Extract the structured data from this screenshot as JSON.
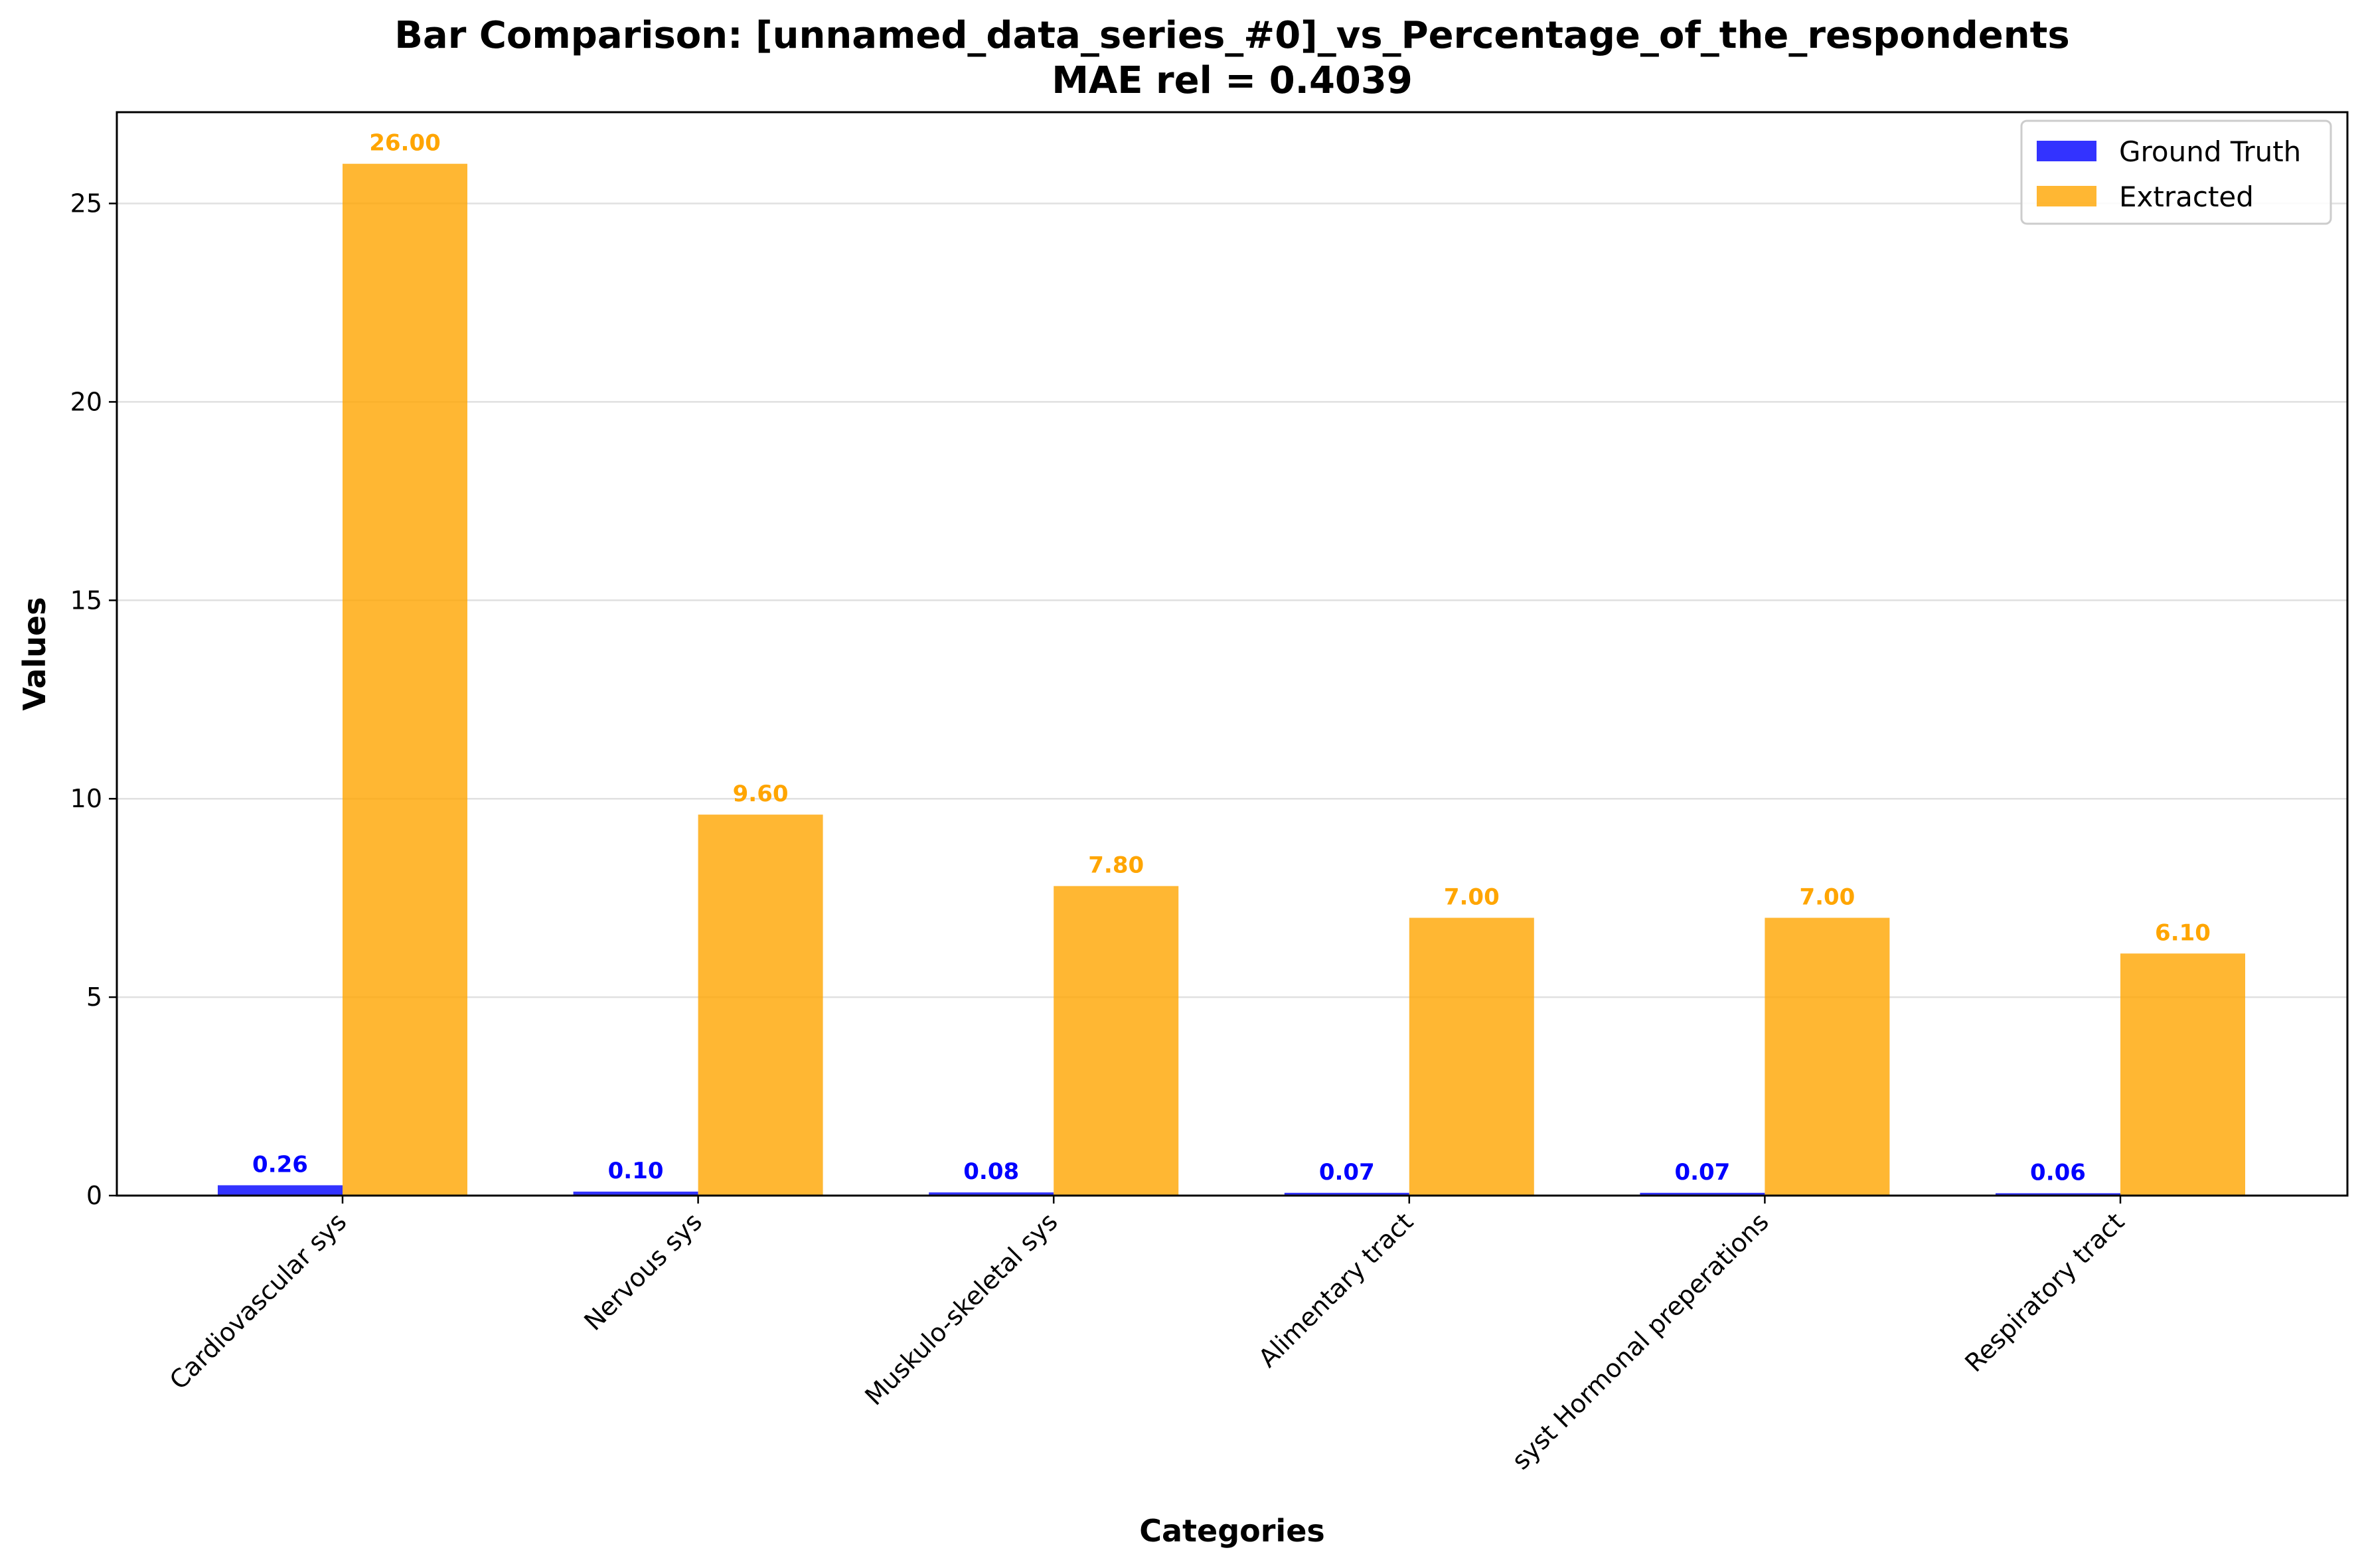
{
  "chart_data": {
    "type": "bar",
    "title_line1": "Bar Comparison: [unnamed_data_series_#0]_vs_Percentage_of_the_respondents",
    "title_line2": "MAE rel = 0.4039",
    "xlabel": "Categories",
    "ylabel": "Values",
    "ylim": [
      0,
      27.3
    ],
    "yticks": [
      "0",
      "5",
      "10",
      "15",
      "20",
      "25"
    ],
    "grid": "horizontal",
    "legend_position": "top-right",
    "categories": [
      "Cardiovascular sys",
      "Nervous sys",
      "Muskulo-skeletal sys",
      "Alimentary tract",
      "syst Hormonal preperations",
      "Respiratory tract"
    ],
    "series": [
      {
        "name": "Ground Truth",
        "color": "#0000ff",
        "values": [
          0.26,
          0.1,
          0.08,
          0.07,
          0.07,
          0.06
        ],
        "labels": [
          "0.26",
          "0.10",
          "0.08",
          "0.07",
          "0.07",
          "0.06"
        ]
      },
      {
        "name": "Extracted",
        "color": "#ffa500",
        "values": [
          26.0,
          9.6,
          7.8,
          7.0,
          7.0,
          6.1
        ],
        "labels": [
          "26.00",
          "9.60",
          "7.80",
          "7.00",
          "7.00",
          "6.10"
        ]
      }
    ]
  }
}
